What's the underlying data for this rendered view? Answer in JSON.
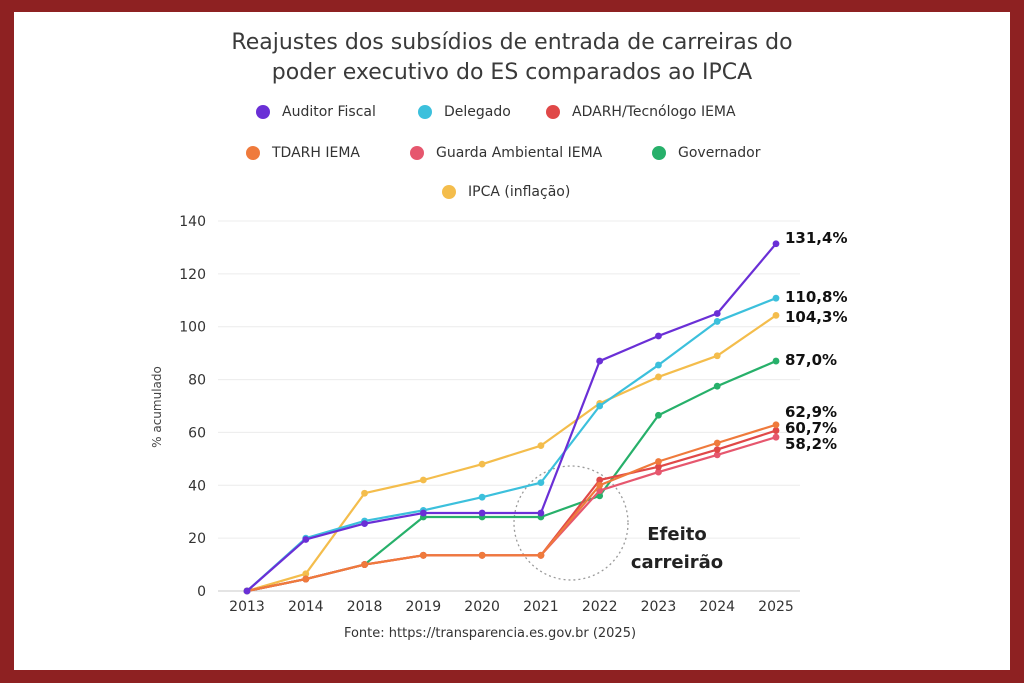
{
  "chart_data": {
    "type": "line",
    "title_line1": "Reajustes dos subsídios de entrada de carreiras do",
    "title_line2": "poder executivo do ES comparados ao IPCA",
    "xlabel": "",
    "ylabel": "% acumulado",
    "ylim": [
      0,
      140
    ],
    "yticks": [
      "0",
      "20",
      "40",
      "60",
      "80",
      "100",
      "120",
      "140"
    ],
    "categories": [
      "2013",
      "2014",
      "2018",
      "2019",
      "2020",
      "2021",
      "2022",
      "2023",
      "2024",
      "2025"
    ],
    "series": [
      {
        "name": "Auditor Fiscal",
        "color": "#6a2fd6",
        "values": [
          0,
          19.5,
          25.5,
          29.5,
          29.5,
          29.5,
          87,
          96.5,
          105,
          131.4
        ],
        "end_label": "131,4%"
      },
      {
        "name": "Delegado",
        "color": "#3cc0dc",
        "values": [
          0,
          20,
          26.5,
          30.5,
          35.5,
          41,
          70,
          85.5,
          102,
          110.8
        ],
        "end_label": "110,8%"
      },
      {
        "name": "ADARH/Tecnólogo IEMA",
        "color": "#e04848",
        "values": [
          0,
          4.5,
          10,
          13.5,
          13.5,
          13.5,
          42,
          47,
          53.5,
          60.7
        ],
        "end_label": "60,7%"
      },
      {
        "name": "TDARH IEMA",
        "color": "#ef7a3c",
        "values": [
          0,
          4.5,
          10,
          13.5,
          13.5,
          13.5,
          40,
          49,
          56,
          62.9
        ],
        "end_label": "62,9%"
      },
      {
        "name": "Guarda Ambiental IEMA",
        "color": "#e6576e",
        "values": [
          0,
          4.5,
          10,
          13.5,
          13.5,
          13.5,
          38,
          45,
          51.5,
          58.2
        ],
        "end_label": "58,2%"
      },
      {
        "name": "Governador",
        "color": "#27b06a",
        "values": [
          0,
          4.5,
          10,
          28,
          28,
          28,
          36,
          66.5,
          77.5,
          87.0
        ],
        "end_label": "87,0%"
      },
      {
        "name": "IPCA (inflação)",
        "color": "#f4bd4c",
        "values": [
          0,
          6.5,
          37,
          42,
          48,
          55,
          71,
          81,
          89,
          104.3
        ],
        "end_label": "104,3%"
      }
    ],
    "annotation": {
      "line1": "Efeito",
      "line2": "carreirão"
    },
    "source": "Fonte: https://transparencia.es.gov.br (2025)"
  }
}
